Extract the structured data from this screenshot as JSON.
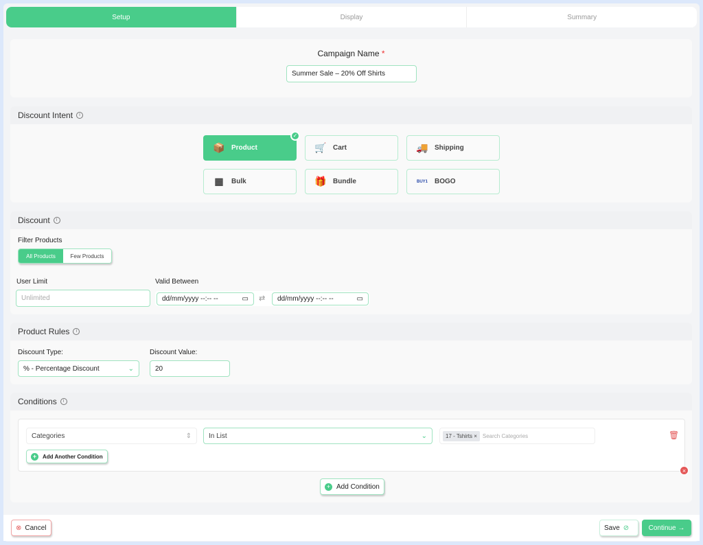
{
  "tabs": [
    {
      "label": "Setup",
      "active": true
    },
    {
      "label": "Display"
    },
    {
      "label": "Summary"
    }
  ],
  "campaign": {
    "label": "Campaign Name",
    "required": "*",
    "value": "Summer Sale – 20% Off Shirts"
  },
  "intent": {
    "title": "Discount Intent",
    "options": [
      {
        "label": "Product",
        "icon": "package-box-icon",
        "glyph": "📦",
        "selected": true
      },
      {
        "label": "Cart",
        "icon": "shopping-cart-icon",
        "glyph": "🛒"
      },
      {
        "label": "Shipping",
        "icon": "delivery-truck-icon",
        "glyph": "🚚"
      },
      {
        "label": "Bulk",
        "icon": "stacked-boxes-icon",
        "glyph": "▦"
      },
      {
        "label": "Bundle",
        "icon": "bundle-box-icon",
        "glyph": "🎁"
      },
      {
        "label": "BOGO",
        "icon": "buy-get-one-icon",
        "glyph": "BUY1"
      }
    ]
  },
  "discount": {
    "title": "Discount",
    "filter_label": "Filter Products",
    "filter_options": [
      "All Products",
      "Few Products"
    ],
    "filter_selected": "All Products",
    "user_limit_label": "User Limit",
    "user_limit_placeholder": "Unlimited",
    "valid_label": "Valid Between",
    "date_placeholder": "dd/mm/yyyy --:-- --"
  },
  "rules": {
    "title": "Product Rules",
    "type_label": "Discount Type:",
    "type_value": "% - Percentage Discount",
    "value_label": "Discount Value:",
    "value": "20"
  },
  "conditions": {
    "title": "Conditions",
    "field": "Categories",
    "operator": "In List",
    "tag": "17 - Tshirts",
    "search_placeholder": "Search Categories",
    "add_another": "Add Another Condition",
    "add_condition": "Add Condition"
  },
  "footer": {
    "cancel": "Cancel",
    "save": "Save",
    "continue": "Continue →"
  },
  "colors": {
    "accent": "#49cc8a",
    "danger": "#e45858",
    "background": "#dce8fb"
  }
}
